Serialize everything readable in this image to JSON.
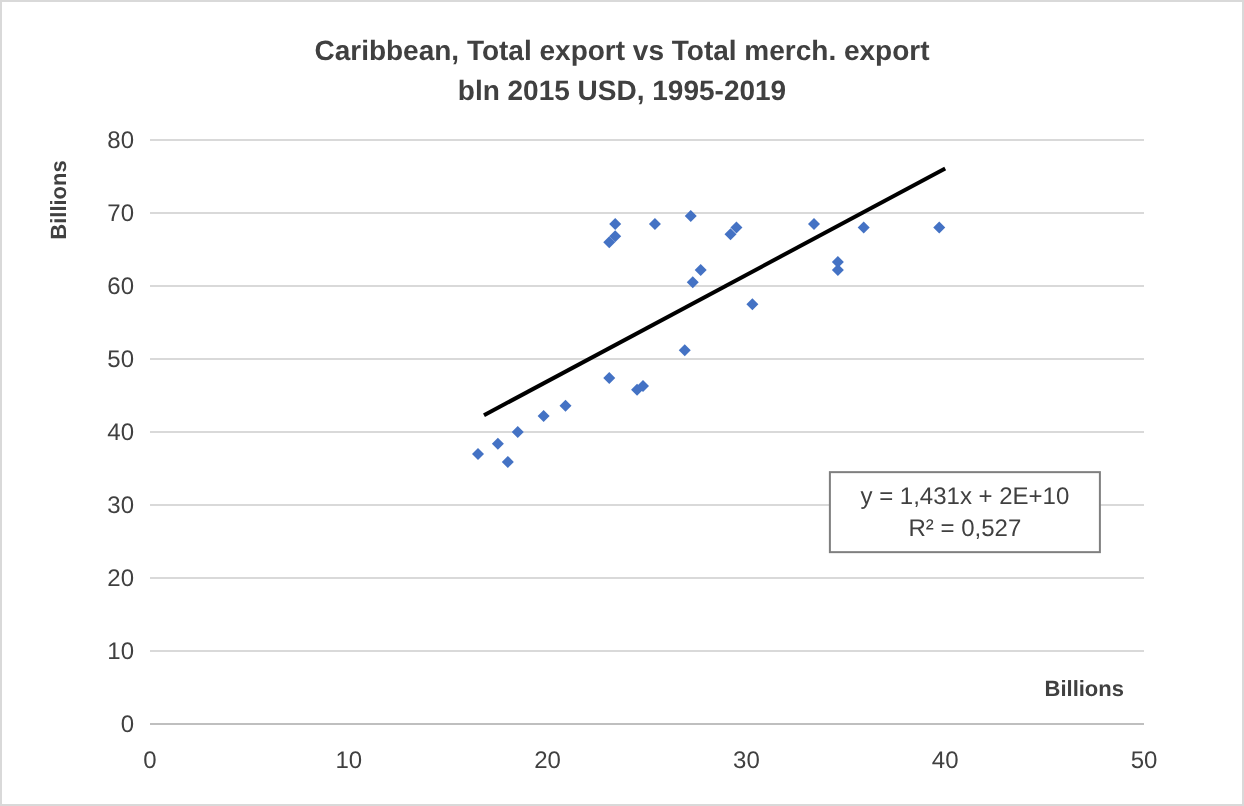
{
  "chart_data": {
    "type": "scatter",
    "title": "Caribbean, Total export vs Total merch. export",
    "subtitle": "bln 2015 USD, 1995-2019",
    "xlabel": "Billions",
    "ylabel": "Billions",
    "xlim": [
      0,
      50
    ],
    "xticks": [
      0,
      10,
      20,
      30,
      40,
      50
    ],
    "ylim": [
      0,
      80
    ],
    "yticks": [
      0,
      10,
      20,
      30,
      40,
      50,
      60,
      70,
      80
    ],
    "grid": "y",
    "annotations": [
      "y = 1,431x + 2E+10",
      "R² = 0,527"
    ],
    "series": [
      {
        "color": "#4472c4",
        "marker": "diamond",
        "x": [
          16.5,
          17.5,
          18.0,
          18.5,
          19.8,
          20.9,
          23.1,
          24.5,
          24.8,
          23.1,
          23.4,
          23.4,
          25.4,
          27.2,
          26.9,
          27.3,
          27.7,
          29.2,
          29.5,
          30.3,
          33.4,
          34.6,
          34.6,
          35.9,
          39.7
        ],
        "values": [
          37.0,
          38.4,
          35.9,
          40.0,
          42.2,
          43.6,
          47.4,
          45.8,
          46.3,
          66.0,
          66.8,
          68.5,
          68.5,
          69.6,
          51.2,
          60.5,
          62.2,
          67.1,
          68.0,
          57.5,
          68.5,
          62.2,
          63.3,
          68.0,
          68.0
        ]
      },
      {
        "type": "line",
        "color": "#000000",
        "marker": "none",
        "line_style": "solid",
        "x": [
          16.8,
          40
        ],
        "values": [
          42.3,
          76.1
        ]
      }
    ]
  }
}
